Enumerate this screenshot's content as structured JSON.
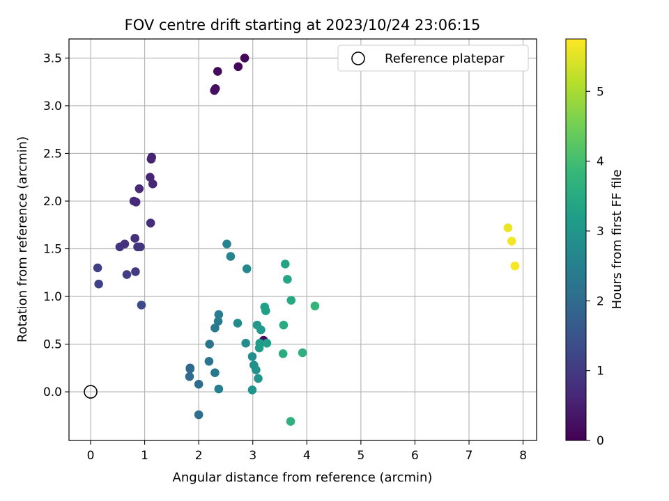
{
  "chart_data": {
    "type": "scatter",
    "title": "FOV centre drift starting at 2023/10/24 23:06:15",
    "xlabel": "Angular distance from reference (arcmin)",
    "ylabel": "Rotation from reference (arcmin)",
    "xlim": [
      -0.4,
      8.25
    ],
    "ylim": [
      -0.51,
      3.7
    ],
    "xticks": [
      0,
      1,
      2,
      3,
      4,
      5,
      6,
      7,
      8
    ],
    "yticks": [
      0.0,
      0.5,
      1.0,
      1.5,
      2.0,
      2.5,
      3.0,
      3.5
    ],
    "xtick_labels": [
      "0",
      "1",
      "2",
      "3",
      "4",
      "5",
      "6",
      "7",
      "8"
    ],
    "ytick_labels": [
      "0.0",
      "0.5",
      "1.0",
      "1.5",
      "2.0",
      "2.5",
      "3.0",
      "3.5"
    ],
    "grid": true,
    "legend": {
      "placement": "upper-right",
      "entries": [
        "Reference platepar"
      ]
    },
    "reference_point": {
      "x": 0,
      "y": 0,
      "label": "Reference platepar"
    },
    "colorbar": {
      "label": "Hours from first FF file",
      "range": [
        0,
        5.75
      ],
      "ticks": [
        0,
        1,
        2,
        3,
        4,
        5
      ],
      "tick_labels": [
        "0",
        "1",
        "2",
        "3",
        "4",
        "5"
      ],
      "colormap": [
        "#440154",
        "#482878",
        "#3e4989",
        "#31688e",
        "#26828e",
        "#1f9e89",
        "#35b779",
        "#6ece58",
        "#b5de2b",
        "#fde725"
      ]
    },
    "points": [
      {
        "x": 2.85,
        "y": 3.5,
        "hours": 0.05
      },
      {
        "x": 2.73,
        "y": 3.41,
        "hours": 0.1
      },
      {
        "x": 2.35,
        "y": 3.36,
        "hours": 0.15
      },
      {
        "x": 2.31,
        "y": 3.18,
        "hours": 0.2
      },
      {
        "x": 2.29,
        "y": 3.16,
        "hours": 0.25
      },
      {
        "x": 3.2,
        "y": 0.54,
        "hours": 0.2
      },
      {
        "x": 1.13,
        "y": 2.46,
        "hours": 0.55
      },
      {
        "x": 1.12,
        "y": 2.44,
        "hours": 0.55
      },
      {
        "x": 1.1,
        "y": 2.25,
        "hours": 0.6
      },
      {
        "x": 1.15,
        "y": 2.18,
        "hours": 0.6
      },
      {
        "x": 0.9,
        "y": 2.13,
        "hours": 0.65
      },
      {
        "x": 0.8,
        "y": 2.0,
        "hours": 0.7
      },
      {
        "x": 0.84,
        "y": 1.99,
        "hours": 0.7
      },
      {
        "x": 1.11,
        "y": 1.77,
        "hours": 0.75
      },
      {
        "x": 0.82,
        "y": 1.61,
        "hours": 0.8
      },
      {
        "x": 0.63,
        "y": 1.55,
        "hours": 0.85
      },
      {
        "x": 0.54,
        "y": 1.52,
        "hours": 0.85
      },
      {
        "x": 0.87,
        "y": 1.52,
        "hours": 0.9
      },
      {
        "x": 0.92,
        "y": 1.52,
        "hours": 0.9
      },
      {
        "x": 0.83,
        "y": 1.26,
        "hours": 1.0
      },
      {
        "x": 0.67,
        "y": 1.23,
        "hours": 1.05
      },
      {
        "x": 0.13,
        "y": 1.3,
        "hours": 1.1
      },
      {
        "x": 0.15,
        "y": 1.13,
        "hours": 1.15
      },
      {
        "x": 0.94,
        "y": 0.91,
        "hours": 1.3
      },
      {
        "x": 1.84,
        "y": 0.25,
        "hours": 1.95
      },
      {
        "x": 1.84,
        "y": 0.24,
        "hours": 1.95
      },
      {
        "x": 1.83,
        "y": 0.16,
        "hours": 2.0
      },
      {
        "x": 2.0,
        "y": 0.08,
        "hours": 2.05
      },
      {
        "x": 2.0,
        "y": -0.24,
        "hours": 2.1
      },
      {
        "x": 2.2,
        "y": 0.5,
        "hours": 2.2
      },
      {
        "x": 2.19,
        "y": 0.32,
        "hours": 2.25
      },
      {
        "x": 2.3,
        "y": 0.2,
        "hours": 2.3
      },
      {
        "x": 2.3,
        "y": 0.67,
        "hours": 2.35
      },
      {
        "x": 2.36,
        "y": 0.74,
        "hours": 2.4
      },
      {
        "x": 2.37,
        "y": 0.81,
        "hours": 2.45
      },
      {
        "x": 2.37,
        "y": 0.03,
        "hours": 2.45
      },
      {
        "x": 2.52,
        "y": 1.55,
        "hours": 2.55
      },
      {
        "x": 2.59,
        "y": 1.42,
        "hours": 2.6
      },
      {
        "x": 2.89,
        "y": 1.29,
        "hours": 2.7
      },
      {
        "x": 2.72,
        "y": 0.72,
        "hours": 2.75
      },
      {
        "x": 2.87,
        "y": 0.51,
        "hours": 2.8
      },
      {
        "x": 2.99,
        "y": 0.37,
        "hours": 2.85
      },
      {
        "x": 3.02,
        "y": 0.28,
        "hours": 2.9
      },
      {
        "x": 3.06,
        "y": 0.23,
        "hours": 2.95
      },
      {
        "x": 2.99,
        "y": 0.02,
        "hours": 3.0
      },
      {
        "x": 3.1,
        "y": 0.14,
        "hours": 3.0
      },
      {
        "x": 3.08,
        "y": 0.7,
        "hours": 3.05
      },
      {
        "x": 3.15,
        "y": 0.65,
        "hours": 3.1
      },
      {
        "x": 3.13,
        "y": 0.51,
        "hours": 3.15
      },
      {
        "x": 3.12,
        "y": 0.46,
        "hours": 3.15
      },
      {
        "x": 3.26,
        "y": 0.51,
        "hours": 3.2
      },
      {
        "x": 3.22,
        "y": 0.89,
        "hours": 3.25
      },
      {
        "x": 3.24,
        "y": 0.85,
        "hours": 3.25
      },
      {
        "x": 3.6,
        "y": 1.34,
        "hours": 3.35
      },
      {
        "x": 3.64,
        "y": 1.18,
        "hours": 3.4
      },
      {
        "x": 3.71,
        "y": 0.96,
        "hours": 3.45
      },
      {
        "x": 3.57,
        "y": 0.7,
        "hours": 3.5
      },
      {
        "x": 3.56,
        "y": 0.4,
        "hours": 3.55
      },
      {
        "x": 3.92,
        "y": 0.41,
        "hours": 3.65
      },
      {
        "x": 4.15,
        "y": 0.9,
        "hours": 3.75
      },
      {
        "x": 3.7,
        "y": -0.31,
        "hours": 3.65
      },
      {
        "x": 7.72,
        "y": 1.72,
        "hours": 5.6
      },
      {
        "x": 7.79,
        "y": 1.58,
        "hours": 5.65
      },
      {
        "x": 7.85,
        "y": 1.32,
        "hours": 5.7
      }
    ]
  }
}
